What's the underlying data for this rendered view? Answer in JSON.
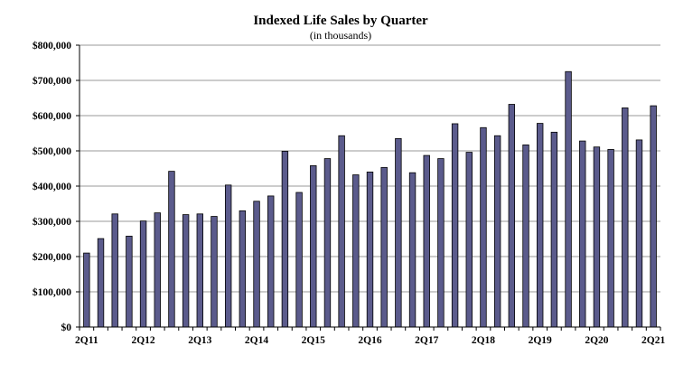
{
  "chart_data": {
    "type": "bar",
    "title": "Indexed Life Sales by Quarter",
    "subtitle": "(in thousands)",
    "xlabel": "",
    "ylabel": "",
    "ylim": [
      0,
      800000
    ],
    "yticks": [
      0,
      100000,
      200000,
      300000,
      400000,
      500000,
      600000,
      700000,
      800000
    ],
    "ytick_labels": [
      "$0",
      "$100,000",
      "$200,000",
      "$300,000",
      "$400,000",
      "$500,000",
      "$600,000",
      "$700,000",
      "$800,000"
    ],
    "grid": true,
    "bar_color": "#5b5b8c",
    "categories": [
      "2Q11",
      "3Q11",
      "4Q11",
      "1Q12",
      "2Q12",
      "3Q12",
      "4Q12",
      "1Q13",
      "2Q13",
      "3Q13",
      "4Q13",
      "1Q14",
      "2Q14",
      "3Q14",
      "4Q14",
      "1Q15",
      "2Q15",
      "3Q15",
      "4Q15",
      "1Q16",
      "2Q16",
      "3Q16",
      "4Q16",
      "1Q17",
      "2Q17",
      "3Q17",
      "4Q17",
      "1Q18",
      "2Q18",
      "3Q18",
      "4Q18",
      "1Q19",
      "2Q19",
      "3Q19",
      "4Q19",
      "1Q20",
      "2Q20",
      "3Q20",
      "4Q20",
      "1Q21",
      "2Q21"
    ],
    "visible_tick_labels": [
      "2Q11",
      "2Q12",
      "2Q13",
      "2Q14",
      "2Q15",
      "2Q16",
      "2Q17",
      "2Q18",
      "2Q19",
      "2Q20",
      "2Q21"
    ],
    "values": [
      210000,
      251000,
      321000,
      258000,
      301000,
      324000,
      442000,
      319000,
      321000,
      314000,
      403000,
      330000,
      357000,
      372000,
      499000,
      382000,
      458000,
      478000,
      543000,
      432000,
      440000,
      453000,
      535000,
      438000,
      487000,
      478000,
      577000,
      496000,
      566000,
      543000,
      632000,
      517000,
      578000,
      553000,
      725000,
      528000,
      511000,
      504000,
      622000,
      531000,
      628000
    ]
  }
}
